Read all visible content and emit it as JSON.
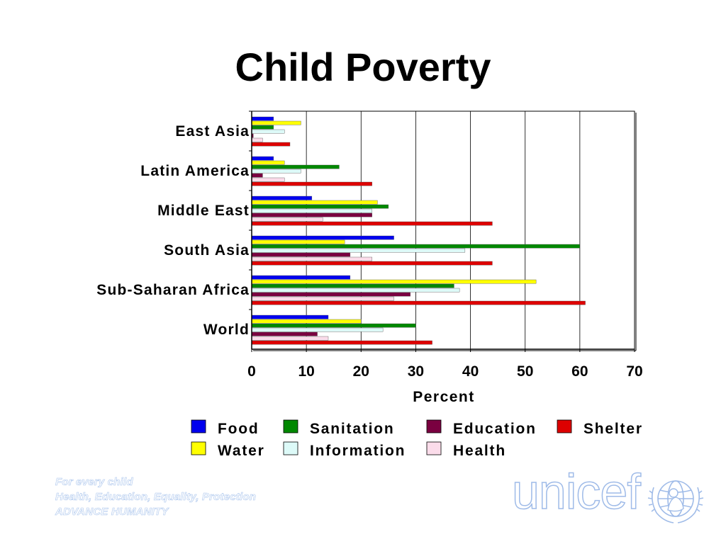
{
  "title": "Child Poverty",
  "chart_data": {
    "type": "bar",
    "orientation": "horizontal",
    "title": "Child Poverty",
    "xlabel": "Percent",
    "ylabel": "",
    "xlim": [
      0,
      70
    ],
    "xticks": [
      "0",
      "10",
      "20",
      "30",
      "40",
      "50",
      "60",
      "70"
    ],
    "grid": "vertical",
    "legend_position": "bottom",
    "categories": [
      "East Asia",
      "Latin America",
      "Middle East",
      "South Asia",
      "Sub-Saharan Africa",
      "World"
    ],
    "series": [
      {
        "name": "Food",
        "color": "#0000ee",
        "values": [
          4,
          4,
          11,
          26,
          18,
          14
        ]
      },
      {
        "name": "Water",
        "color": "#ffff00",
        "values": [
          9,
          6,
          23,
          17,
          52,
          20
        ]
      },
      {
        "name": "Sanitation",
        "color": "#008800",
        "values": [
          4,
          16,
          25,
          60,
          37,
          30
        ]
      },
      {
        "name": "Information",
        "color": "#ddfaf8",
        "values": [
          6,
          9,
          22,
          39,
          38,
          24
        ]
      },
      {
        "name": "Education",
        "color": "#7a0040",
        "values": [
          0.3,
          2,
          22,
          18,
          29,
          12
        ]
      },
      {
        "name": "Health",
        "color": "#fbdcea",
        "values": [
          2,
          6,
          13,
          22,
          26,
          14
        ]
      },
      {
        "name": "Shelter",
        "color": "#dd0000",
        "values": [
          7,
          22,
          44,
          44,
          61,
          33
        ]
      }
    ]
  },
  "footer": {
    "line1": "For every child",
    "line2": "Health, Education, Equality, Protection",
    "line3": "ADVANCE HUMANITY"
  },
  "logo": {
    "text": "unicef"
  }
}
